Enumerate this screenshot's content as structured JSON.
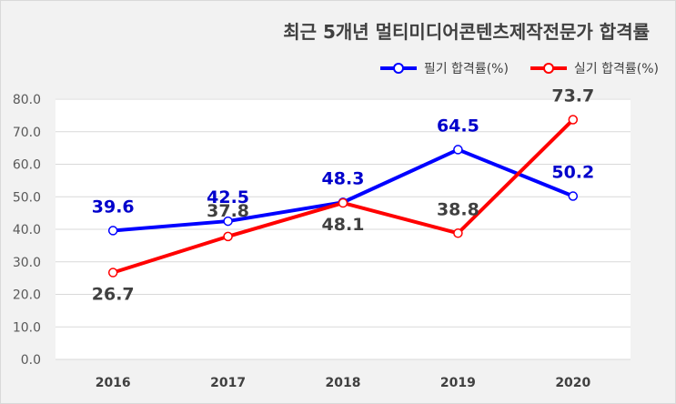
{
  "chart_data": {
    "type": "line",
    "title": "최근 5개년 멀티미디어콘텐츠제작전문가 합격률",
    "categories": [
      "2016",
      "2017",
      "2018",
      "2019",
      "2020"
    ],
    "ylim": [
      0,
      80
    ],
    "yticks": [
      "0.0",
      "10.0",
      "20.0",
      "30.0",
      "40.0",
      "50.0",
      "60.0",
      "70.0",
      "80.0"
    ],
    "grid": true,
    "legend_position": "top-right",
    "series": [
      {
        "name": "필기 합격률(%)",
        "color": "#0000ff",
        "values": [
          39.6,
          42.5,
          48.3,
          64.5,
          50.2
        ],
        "labels": [
          "39.6",
          "42.5",
          "48.3",
          "64.5",
          "50.2"
        ]
      },
      {
        "name": "실기 합격률(%)",
        "color": "#ff0000",
        "values": [
          26.7,
          37.8,
          48.1,
          38.8,
          73.7
        ],
        "labels": [
          "26.7",
          "37.8",
          "48.1",
          "38.8",
          "73.7"
        ]
      }
    ]
  }
}
